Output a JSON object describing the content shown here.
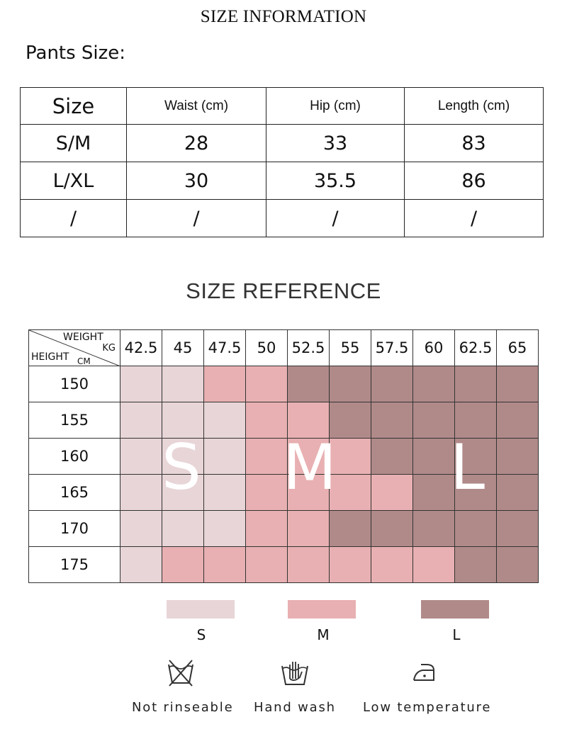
{
  "title": "SIZE INFORMATION",
  "pants_label": "Pants Size:",
  "pants_table": {
    "headers": [
      "Size",
      "Waist (cm)",
      "Hip (cm)",
      "Length (cm)"
    ],
    "rows": [
      [
        "S/M",
        "28",
        "33",
        "83"
      ],
      [
        "L/XL",
        "30",
        "35.5",
        "86"
      ],
      [
        "/",
        "/",
        "/",
        "/"
      ]
    ]
  },
  "reference": {
    "title": "SIZE REFERENCE",
    "corner": {
      "weight": "WEIGHT",
      "kg": "KG",
      "height": "HEIGHT",
      "cm": "CM"
    },
    "weights": [
      "42.5",
      "45",
      "47.5",
      "50",
      "52.5",
      "55",
      "57.5",
      "60",
      "62.5",
      "65"
    ],
    "heights": [
      "150",
      "155",
      "160",
      "165",
      "170",
      "175"
    ],
    "size_map": [
      [
        "S",
        "S",
        "M",
        "M",
        "L",
        "L",
        "L",
        "L",
        "L",
        "L"
      ],
      [
        "S",
        "S",
        "S",
        "M",
        "M",
        "L",
        "L",
        "L",
        "L",
        "L"
      ],
      [
        "S",
        "S",
        "S",
        "M",
        "M",
        "M",
        "L",
        "L",
        "L",
        "L"
      ],
      [
        "S",
        "S",
        "S",
        "M",
        "M",
        "M",
        "M",
        "L",
        "L",
        "L"
      ],
      [
        "S",
        "S",
        "S",
        "M",
        "M",
        "L",
        "L",
        "L",
        "L",
        "L"
      ],
      [
        "S",
        "M",
        "M",
        "M",
        "M",
        "M",
        "M",
        "M",
        "L",
        "L"
      ]
    ],
    "big_letters": {
      "S": "S",
      "M": "M",
      "L": "L"
    },
    "colors": {
      "S": "#e8d5d7",
      "M": "#e8b0b2",
      "L": "#b08a89"
    }
  },
  "legend": [
    {
      "key": "S",
      "label": "S"
    },
    {
      "key": "M",
      "label": "M"
    },
    {
      "key": "L",
      "label": "L"
    }
  ],
  "care": [
    {
      "icon": "no-wash-icon",
      "label": "Not rinseable"
    },
    {
      "icon": "hand-wash-icon",
      "label": "Hand wash"
    },
    {
      "icon": "low-temp-iron-icon",
      "label": "Low temperature"
    }
  ]
}
